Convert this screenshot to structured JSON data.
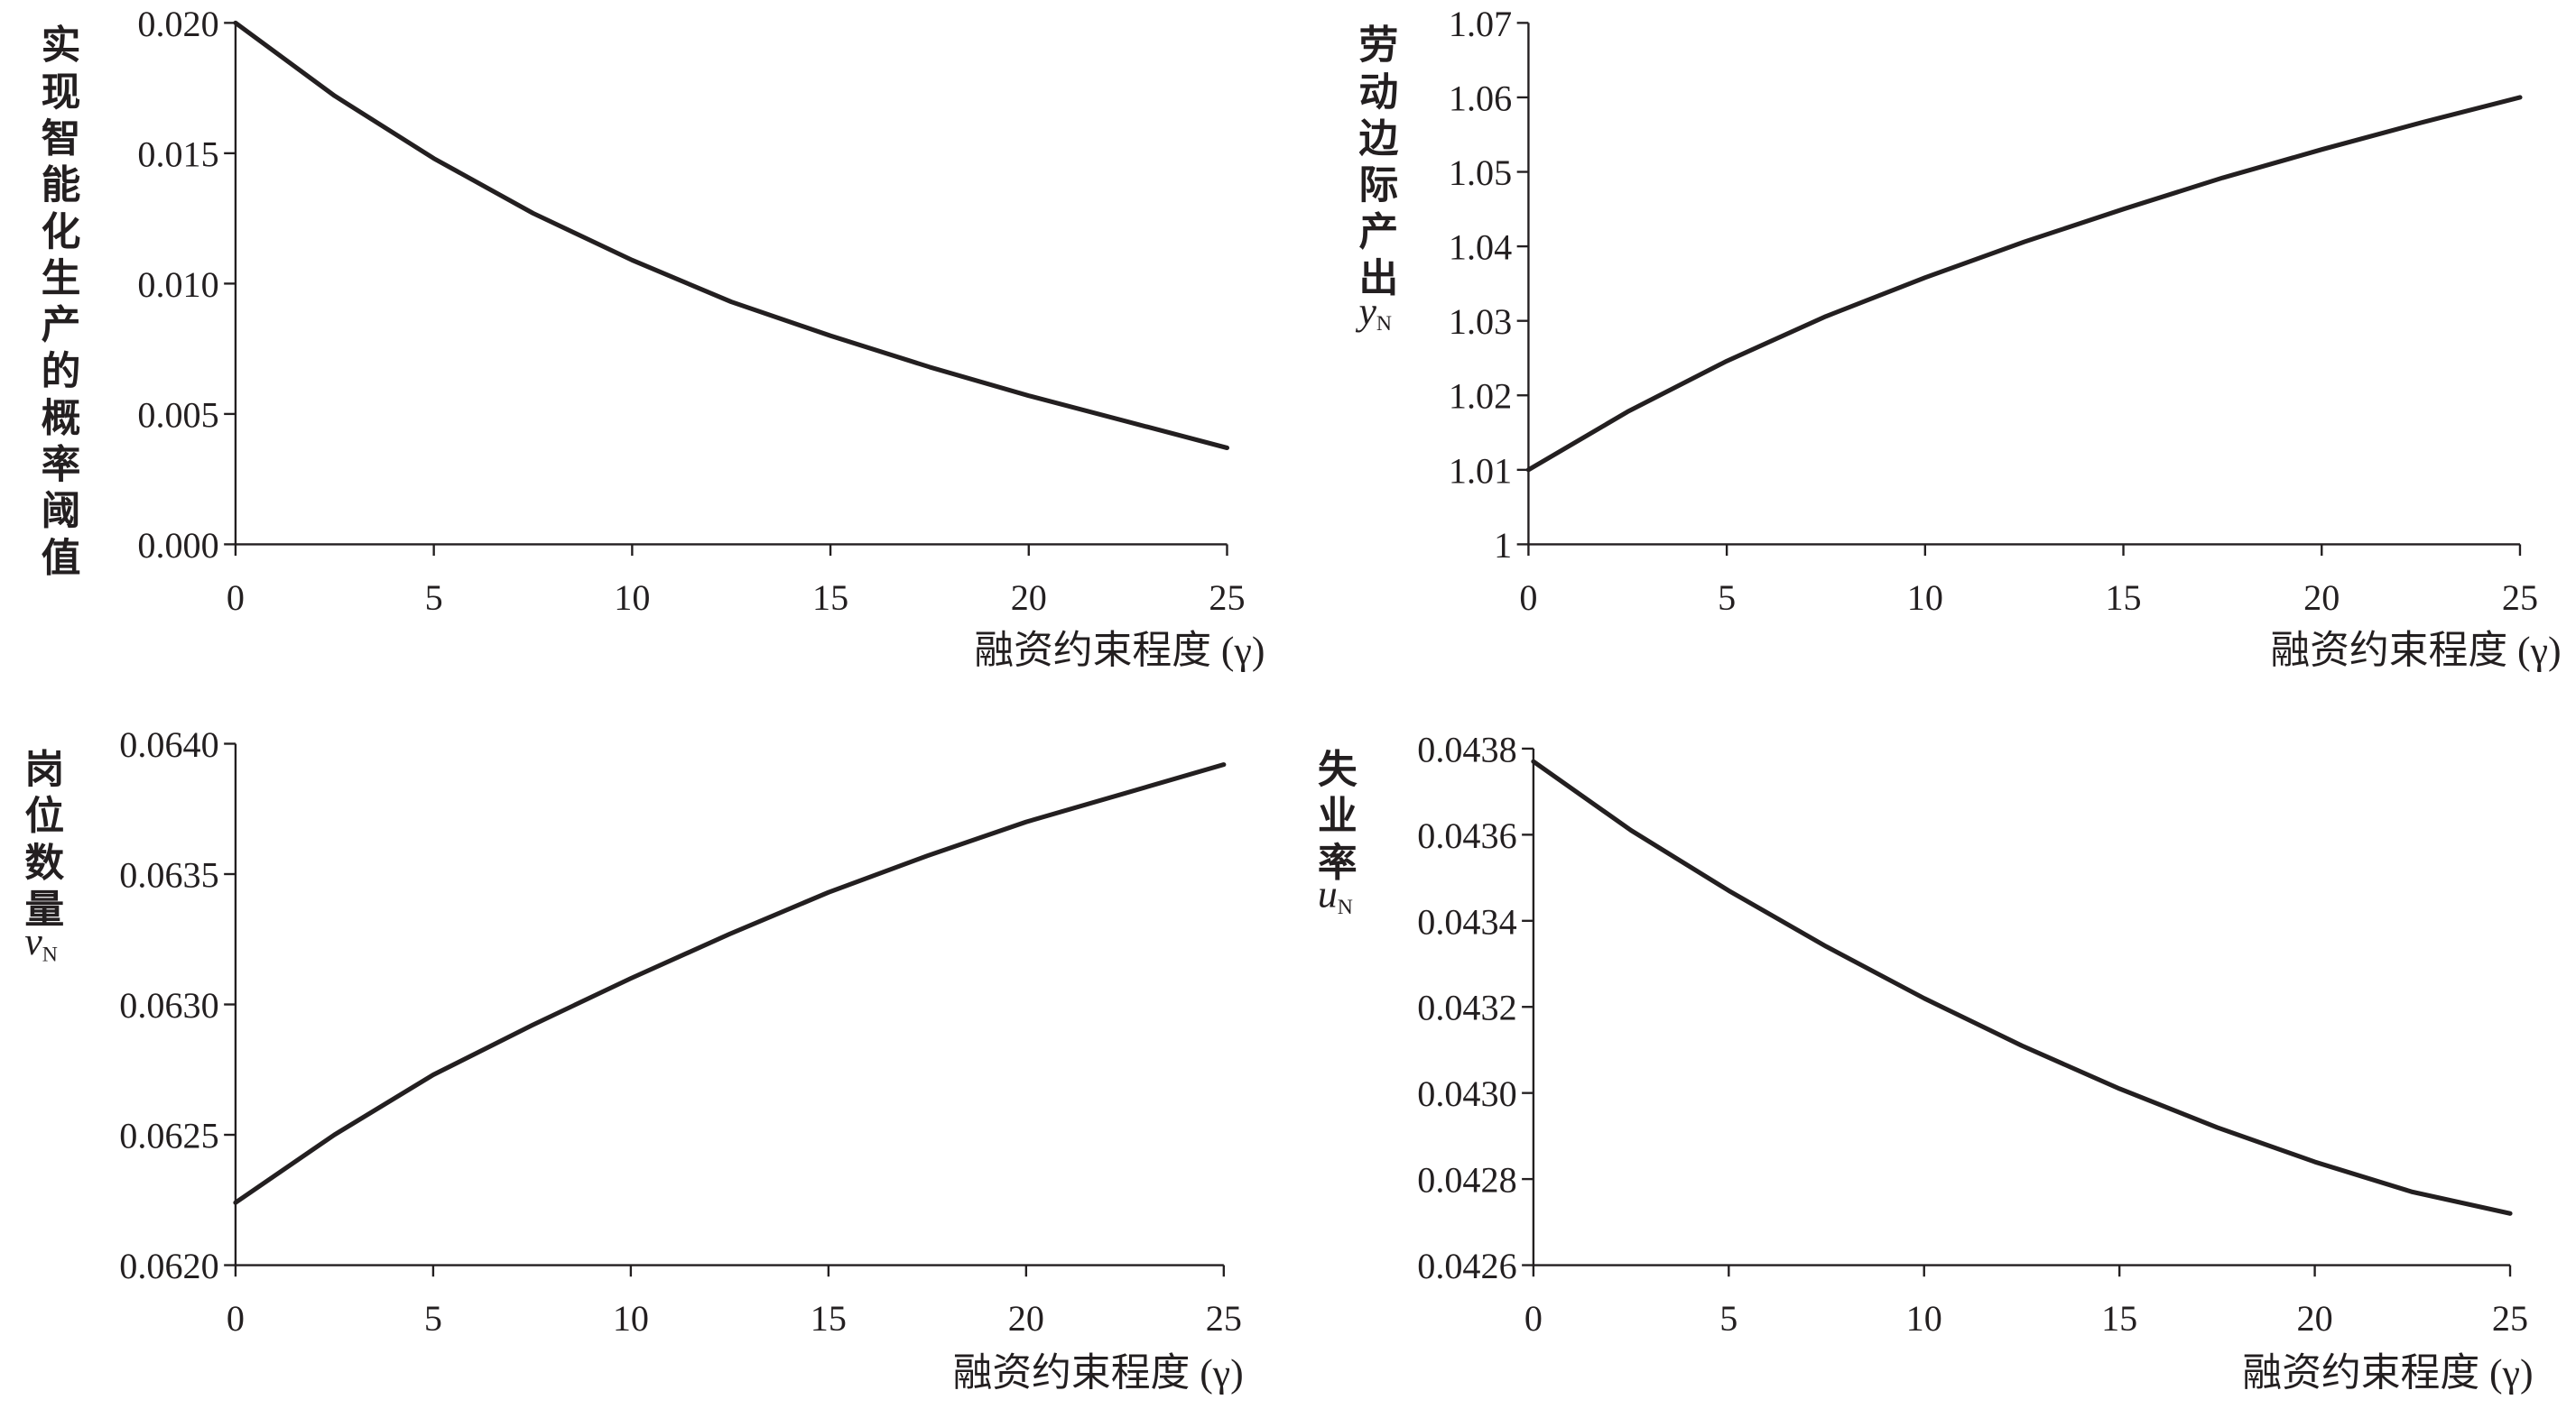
{
  "chart_data": [
    {
      "type": "line",
      "ylabel": "实现智能化生产的概率阈值",
      "ylabel_var": "",
      "ylabel_sub": "",
      "xlabel": "融资约束程度 (γ)",
      "xlim": [
        0,
        25
      ],
      "ylim": [
        0,
        0.02
      ],
      "xticks": [
        0,
        5,
        10,
        15,
        20,
        25
      ],
      "yticks": [
        0.0,
        0.005,
        0.01,
        0.015,
        0.02
      ],
      "ytick_labels": [
        "0.000",
        "0.005",
        "0.010",
        "0.015",
        "0.020"
      ],
      "grid": false,
      "series": [
        {
          "x": [
            0,
            2.5,
            5,
            7.5,
            10,
            12.5,
            15,
            17.5,
            20,
            22.5,
            25
          ],
          "y": [
            0.02,
            0.0172,
            0.0148,
            0.0127,
            0.0109,
            0.0093,
            0.008,
            0.0068,
            0.0057,
            0.0047,
            0.0037
          ]
        }
      ]
    },
    {
      "type": "line",
      "ylabel": "劳动边际产出",
      "ylabel_var": "y",
      "ylabel_sub": "N",
      "xlabel": "融资约束程度 (γ)",
      "xlim": [
        0,
        25
      ],
      "ylim": [
        1,
        1.07
      ],
      "xticks": [
        0,
        5,
        10,
        15,
        20,
        25
      ],
      "yticks": [
        1.0,
        1.01,
        1.02,
        1.03,
        1.04,
        1.05,
        1.06,
        1.07
      ],
      "ytick_labels": [
        "1",
        "1.01",
        "1.02",
        "1.03",
        "1.04",
        "1.05",
        "1.06",
        "1.07"
      ],
      "grid": false,
      "series": [
        {
          "x": [
            0,
            2.5,
            5,
            7.5,
            10,
            12.5,
            15,
            17.5,
            20,
            22.5,
            25
          ],
          "y": [
            1.01,
            1.0178,
            1.0246,
            1.0306,
            1.0358,
            1.0406,
            1.045,
            1.0492,
            1.053,
            1.0566,
            1.06
          ]
        }
      ]
    },
    {
      "type": "line",
      "ylabel": "岗位数量",
      "ylabel_var": "v",
      "ylabel_sub": "N",
      "xlabel": "融资约束程度 (γ)",
      "xlim": [
        0,
        25
      ],
      "ylim": [
        0.062,
        0.064
      ],
      "xticks": [
        0,
        5,
        10,
        15,
        20,
        25
      ],
      "yticks": [
        0.062,
        0.0625,
        0.063,
        0.0635,
        0.064
      ],
      "ytick_labels": [
        "0.0620",
        "0.0625",
        "0.0630",
        "0.0635",
        "0.0640"
      ],
      "grid": false,
      "series": [
        {
          "x": [
            0,
            2.5,
            5,
            7.5,
            10,
            12.5,
            15,
            17.5,
            20,
            22.5,
            25
          ],
          "y": [
            0.06224,
            0.0625,
            0.06273,
            0.06292,
            0.0631,
            0.06327,
            0.06343,
            0.06357,
            0.0637,
            0.06381,
            0.06392
          ]
        }
      ]
    },
    {
      "type": "line",
      "ylabel": "失业率",
      "ylabel_var": "u",
      "ylabel_sub": "N",
      "xlabel": "融资约束程度 (γ)",
      "xlim": [
        0,
        25
      ],
      "ylim": [
        0.0426,
        0.0438
      ],
      "xticks": [
        0,
        5,
        10,
        15,
        20,
        25
      ],
      "yticks": [
        0.0426,
        0.0428,
        0.043,
        0.0432,
        0.0434,
        0.0436,
        0.0438
      ],
      "ytick_labels": [
        "0.0426",
        "0.0428",
        "0.0430",
        "0.0432",
        "0.0434",
        "0.0436",
        "0.0438"
      ],
      "grid": false,
      "series": [
        {
          "x": [
            0,
            2.5,
            5,
            7.5,
            10,
            12.5,
            15,
            17.5,
            20,
            22.5,
            25
          ],
          "y": [
            0.04377,
            0.04361,
            0.04347,
            0.04334,
            0.04322,
            0.04311,
            0.04301,
            0.04292,
            0.04284,
            0.04277,
            0.04272
          ]
        }
      ]
    }
  ]
}
